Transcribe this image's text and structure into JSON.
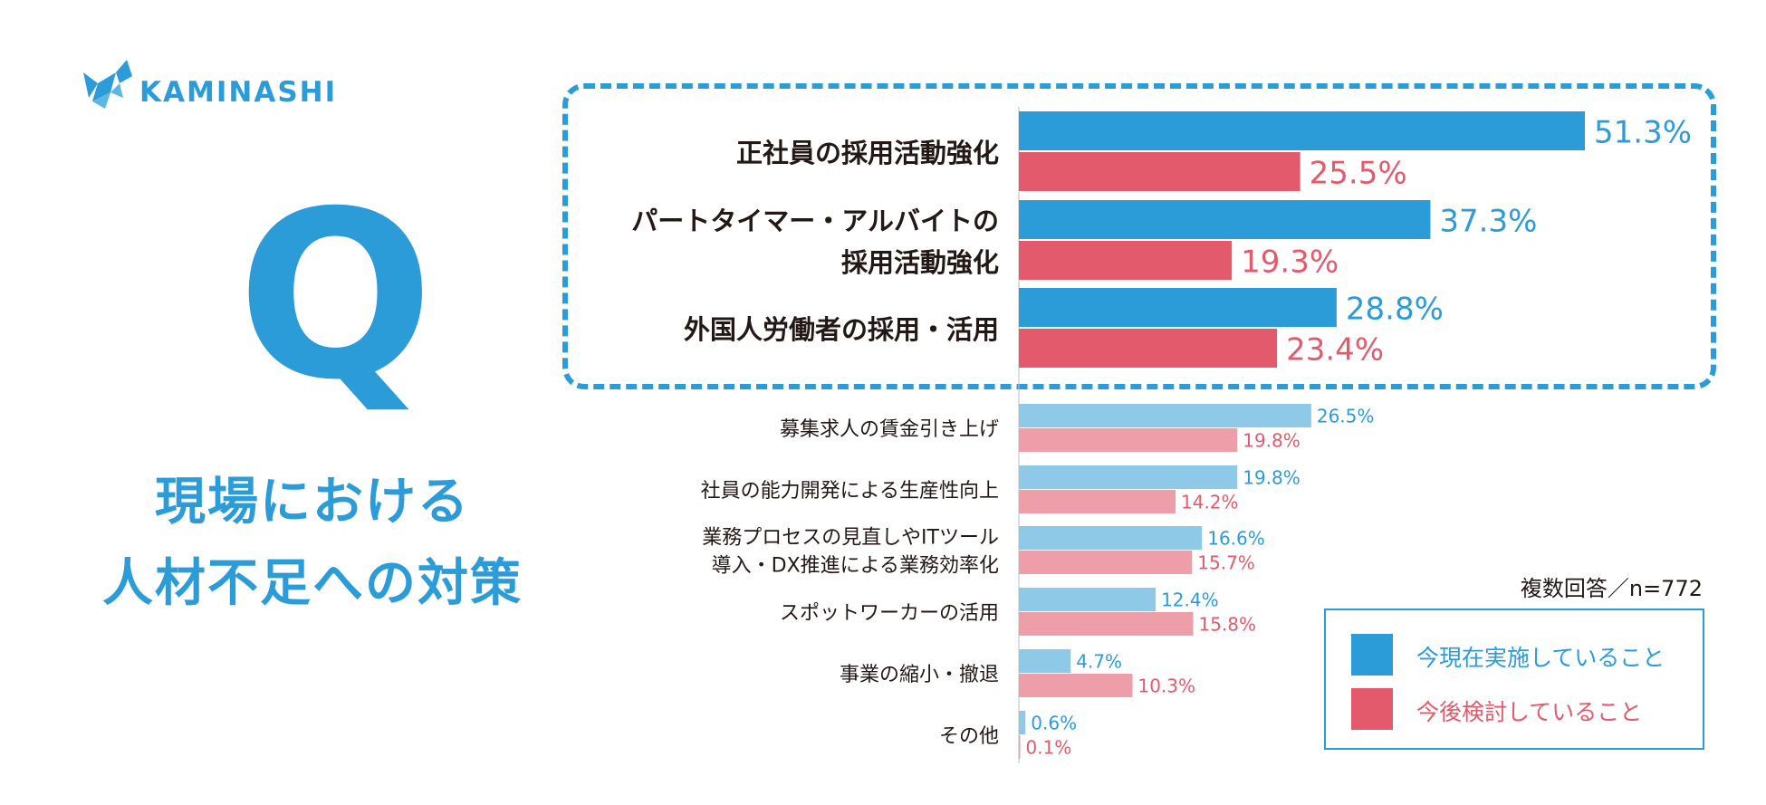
{
  "brand": {
    "name": "KAMINASHI",
    "icon": "goat-icon"
  },
  "question": {
    "letter": "Q",
    "lines": [
      "現場における",
      "人材不足への対策"
    ]
  },
  "note": "複数回答／n=772",
  "legend": [
    {
      "label": "今現在実施していること",
      "color": "#2b9cd8"
    },
    {
      "label": "今後検討していること",
      "color": "#e35a6c"
    }
  ],
  "colors": {
    "blue": "#2b9cd8",
    "red": "#e35a6c",
    "light_blue": "#8ec9e8",
    "light_red": "#ee9ea8",
    "border": "#2b9cd8"
  },
  "chart_data": {
    "type": "bar",
    "orientation": "horizontal",
    "title": "",
    "xlabel": "",
    "ylabel": "",
    "xlim": [
      0,
      51.3
    ],
    "unit": "%",
    "categories": [
      {
        "lines": [
          "正社員の採用活動強化"
        ],
        "highlighted": true
      },
      {
        "lines": [
          "パートタイマー・アルバイトの",
          "採用活動強化"
        ],
        "highlighted": true
      },
      {
        "lines": [
          "外国人労働者の採用・活用"
        ],
        "highlighted": true
      },
      {
        "lines": [
          "募集求人の賃金引き上げ"
        ],
        "highlighted": false
      },
      {
        "lines": [
          "社員の能力開発による生産性向上"
        ],
        "highlighted": false
      },
      {
        "lines": [
          "業務プロセスの見直しやITツール",
          "導入・DX推進による業務効率化"
        ],
        "highlighted": false
      },
      {
        "lines": [
          "スポットワーカーの活用"
        ],
        "highlighted": false
      },
      {
        "lines": [
          "事業の縮小・撤退"
        ],
        "highlighted": false
      },
      {
        "lines": [
          "その他"
        ],
        "highlighted": false
      }
    ],
    "series": [
      {
        "name": "今現在実施していること",
        "values": [
          51.3,
          37.3,
          28.8,
          26.5,
          19.8,
          16.6,
          12.4,
          4.7,
          0.6
        ],
        "labels": [
          "51.3%",
          "37.3%",
          "28.8%",
          "26.5%",
          "19.8%",
          "16.6%",
          "12.4%",
          "4.7%",
          "0.6%"
        ]
      },
      {
        "name": "今後検討していること",
        "values": [
          25.5,
          19.3,
          23.4,
          19.8,
          14.2,
          15.7,
          15.8,
          10.3,
          0.1
        ],
        "labels": [
          "25.5%",
          "19.3%",
          "23.4%",
          "19.8%",
          "14.2%",
          "15.7%",
          "15.8%",
          "10.3%",
          "0.1%"
        ]
      }
    ]
  }
}
